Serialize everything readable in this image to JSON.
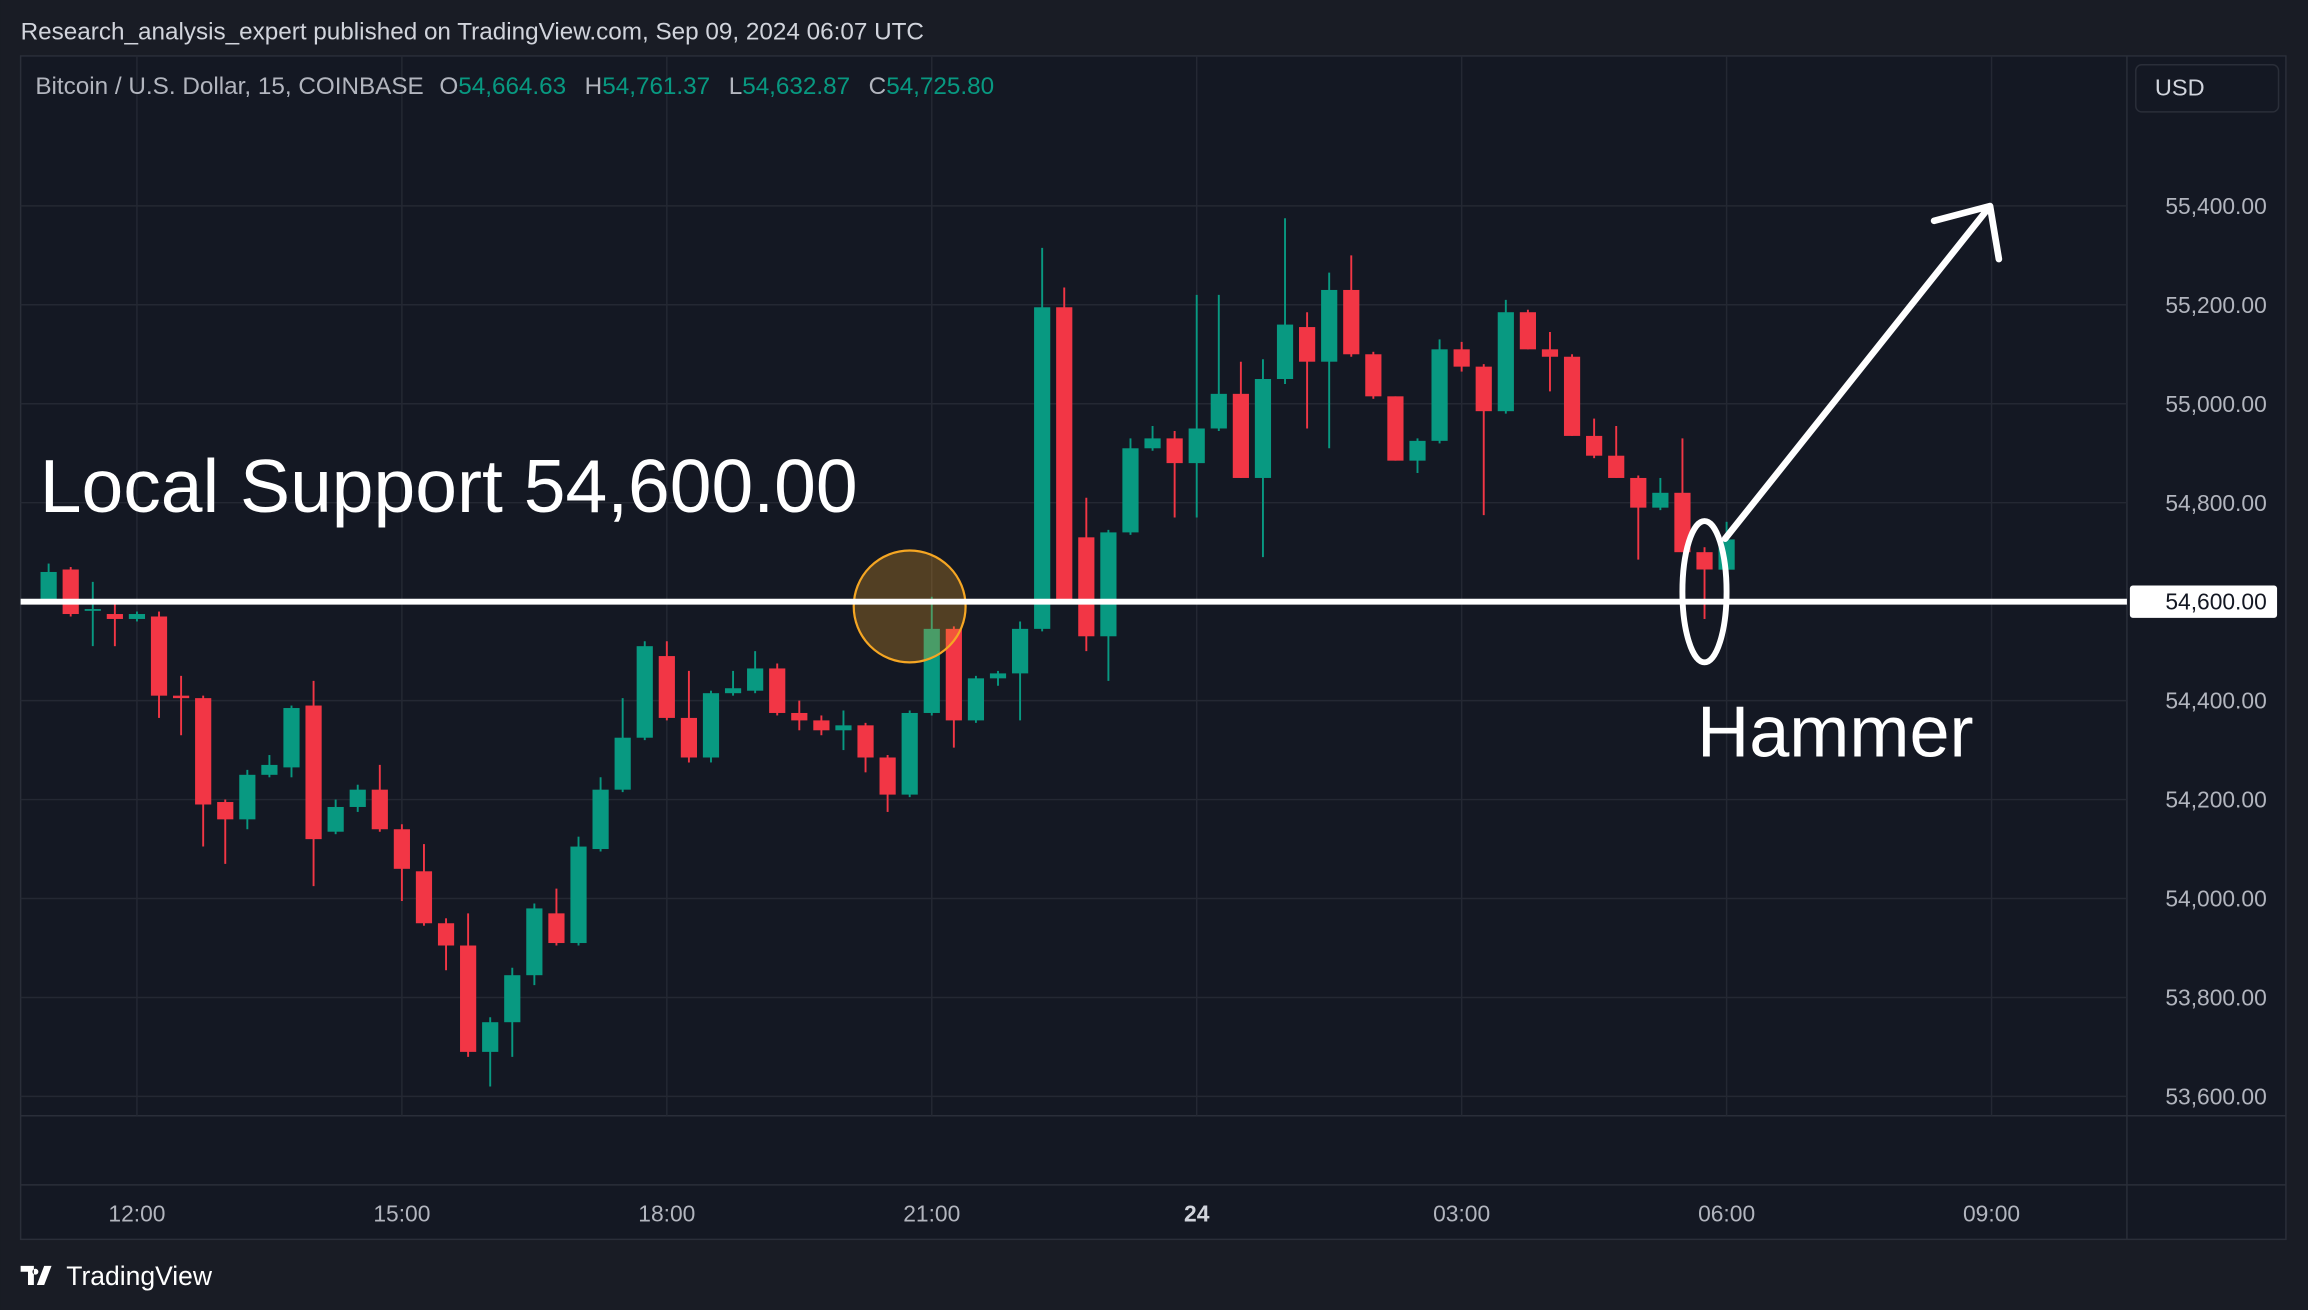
{
  "header": {
    "published": "Research_analysis_expert published on TradingView.com, Sep 09, 2024 06:07 UTC",
    "symbol": "Bitcoin / U.S. Dollar, 15, COINBASE",
    "ohlc": [
      {
        "key": "O",
        "label": "54,664.63"
      },
      {
        "key": "H",
        "label": "54,761.37"
      },
      {
        "key": "L",
        "label": "54,632.87"
      },
      {
        "key": "C",
        "label": "54,725.80"
      }
    ],
    "currency": "USD"
  },
  "footer": {
    "logo": "TradingView"
  },
  "chart_data": {
    "type": "candlestick",
    "x": [
      11,
      11.25,
      11.5,
      11.75,
      12,
      12.25,
      12.5,
      12.75,
      13,
      13.25,
      13.5,
      13.75,
      14,
      14.25,
      14.5,
      14.75,
      15,
      15.25,
      15.5,
      15.75,
      16,
      16.25,
      16.5,
      16.75,
      17,
      17.25,
      17.5,
      17.75,
      18,
      18.25,
      18.5,
      18.75,
      19,
      19.25,
      19.5,
      19.75,
      20,
      20.25,
      20.5,
      20.75,
      21,
      21.25,
      21.5,
      21.75,
      22,
      22.25,
      22.5,
      22.75,
      23,
      23.25,
      23.5,
      23.75,
      24,
      24.25,
      24.5,
      24.75,
      25,
      25.25,
      25.5,
      25.75,
      26,
      26.25,
      26.5,
      26.75,
      27,
      27.25,
      27.5,
      27.75,
      28,
      28.25,
      28.5,
      28.75,
      29,
      29.25,
      29.5,
      29.75,
      30
    ],
    "open": [
      54600,
      54665,
      54585,
      54575,
      54565,
      54570,
      54410,
      54405,
      54195,
      54160,
      54250,
      54265,
      54390,
      54135,
      54185,
      54220,
      54140,
      54055,
      53950,
      53905,
      53690,
      53750,
      53845,
      53970,
      53910,
      54100,
      54220,
      54325,
      54490,
      54365,
      54285,
      54415,
      54420,
      54465,
      54375,
      54360,
      54340,
      54350,
      54285,
      54210,
      54375,
      54545,
      54360,
      54445,
      54455,
      54545,
      55195,
      54730,
      54530,
      54740,
      54910,
      54930,
      54880,
      54950,
      55020,
      54850,
      55050,
      55155,
      55085,
      55230,
      55100,
      55015,
      54885,
      54925,
      55110,
      55075,
      54985,
      55185,
      55110,
      55095,
      54935,
      54895,
      54850,
      54790,
      54820,
      54700,
      54664.63
    ],
    "high": [
      54677,
      54670,
      54640,
      54600,
      54580,
      54580,
      54450,
      54410,
      54200,
      54260,
      54290,
      54390,
      54440,
      54200,
      54230,
      54270,
      54150,
      54110,
      53960,
      53970,
      53760,
      53860,
      53990,
      54020,
      54125,
      54245,
      54405,
      54520,
      54520,
      54460,
      54420,
      54460,
      54500,
      54475,
      54400,
      54370,
      54380,
      54355,
      54290,
      54380,
      54610,
      54550,
      54450,
      54460,
      54560,
      55315,
      55235,
      54810,
      54745,
      54930,
      54955,
      54945,
      55220,
      55220,
      55085,
      55090,
      55375,
      55185,
      55265,
      55300,
      55105,
      55015,
      54930,
      55130,
      55125,
      55080,
      55210,
      55190,
      55145,
      55100,
      54970,
      54955,
      54855,
      54850,
      54930,
      54710,
      54761.37
    ],
    "low": [
      54595,
      54570,
      54510,
      54510,
      54560,
      54365,
      54330,
      54105,
      54070,
      54140,
      54245,
      54245,
      54025,
      54130,
      54175,
      54135,
      53995,
      53945,
      53855,
      53680,
      53620,
      53680,
      53825,
      53905,
      53905,
      54095,
      54215,
      54320,
      54360,
      54275,
      54275,
      54410,
      54415,
      54370,
      54340,
      54330,
      54300,
      54255,
      54175,
      54205,
      54370,
      54305,
      54355,
      54430,
      54360,
      54540,
      54600,
      54500,
      54440,
      54735,
      54905,
      54770,
      54770,
      54945,
      54850,
      54690,
      55040,
      54950,
      54910,
      55095,
      55010,
      54885,
      54860,
      54920,
      55065,
      54775,
      54980,
      55110,
      55025,
      54935,
      54890,
      54850,
      54685,
      54785,
      54700,
      54565,
      54632.87
    ],
    "close": [
      54660,
      54575,
      54585,
      54565,
      54575,
      54410,
      54405,
      54190,
      54160,
      54250,
      54270,
      54385,
      54120,
      54185,
      54220,
      54140,
      54060,
      53950,
      53905,
      53690,
      53750,
      53845,
      53980,
      53910,
      54105,
      54220,
      54325,
      54510,
      54365,
      54285,
      54415,
      54425,
      54465,
      54375,
      54360,
      54340,
      54350,
      54285,
      54210,
      54375,
      54545,
      54360,
      54445,
      54455,
      54545,
      55195,
      54605,
      54530,
      54740,
      54910,
      54930,
      54880,
      54950,
      55020,
      54850,
      55050,
      55160,
      55085,
      55230,
      55100,
      55015,
      54885,
      54925,
      55110,
      55075,
      54985,
      55185,
      55110,
      55095,
      54935,
      54895,
      54850,
      54790,
      54820,
      54700,
      54665,
      54725.8
    ],
    "up_color": "#089981",
    "down_color": "#f23645",
    "xlim": [
      10.683,
      34.533
    ],
    "xticks": [
      {
        "value": 12,
        "label": "12:00"
      },
      {
        "value": 15,
        "label": "15:00"
      },
      {
        "value": 18,
        "label": "18:00"
      },
      {
        "value": 21,
        "label": "21:00"
      },
      24,
      {
        "value": 27,
        "label": "03:00"
      },
      {
        "value": 30,
        "label": "06:00"
      },
      {
        "value": 33,
        "label": "09:00"
      }
    ],
    "ylim": [
      53561,
      55703
    ],
    "yticks": [
      {
        "value": 53600,
        "label": "53,600.00"
      },
      {
        "value": 53800,
        "label": "53,800.00"
      },
      {
        "value": 54000,
        "label": "54,000.00"
      },
      {
        "value": 54200,
        "label": "54,200.00"
      },
      {
        "value": 54400,
        "label": "54,400.00"
      },
      {
        "value": 54600,
        "label": "54,600.00"
      },
      {
        "value": 54800,
        "label": "54,800.00"
      },
      {
        "value": 55000,
        "label": "55,000.00"
      },
      {
        "value": 55200,
        "label": "55,200.00"
      },
      {
        "value": 55400,
        "label": "55,400.00"
      }
    ],
    "grid": true,
    "support": {
      "text": "Local Support 54,600.00",
      "level": 54600,
      "level_label": "54,600.00",
      "color": "#ffffff"
    },
    "pattern": {
      "text": "Hammer"
    }
  }
}
